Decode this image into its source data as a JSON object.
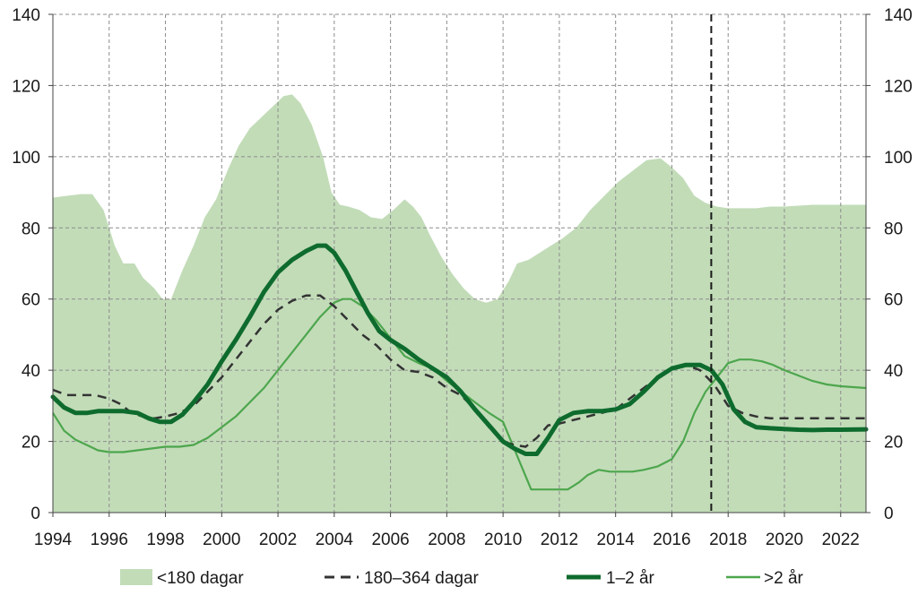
{
  "chart_data": {
    "type": "area+line",
    "title": "",
    "xlabel": "",
    "ylabel": "",
    "xlim": [
      1994,
      2022.9
    ],
    "ylim": [
      0,
      140
    ],
    "x_ticks": [
      "1994",
      "1996",
      "1998",
      "2000",
      "2002",
      "2004",
      "2006",
      "2008",
      "2010",
      "2012",
      "2014",
      "2016",
      "2018",
      "2020",
      "2022"
    ],
    "y_ticks": [
      "0",
      "20",
      "40",
      "60",
      "80",
      "100",
      "120",
      "140"
    ],
    "grid": true,
    "vertical_marker_x": 2017.4,
    "colors": {
      "area": "#c2dcb8",
      "dashed": "#333333",
      "thick": "#0e6b2e",
      "thin": "#4da64d",
      "grid": "#8c8c8c"
    },
    "series": [
      {
        "name": "<180 dagar",
        "style": "area",
        "x": [
          1994,
          1994.5,
          1995,
          1995.4,
          1995.8,
          1996.2,
          1996.5,
          1996.9,
          1997.2,
          1997.6,
          1997.9,
          1998.2,
          1998.6,
          1999,
          1999.4,
          1999.8,
          2000.2,
          2000.6,
          2001,
          2001.4,
          2001.8,
          2002.2,
          2002.5,
          2002.8,
          2003.2,
          2003.6,
          2003.9,
          2004.2,
          2004.5,
          2004.9,
          2005.3,
          2005.7,
          2006.1,
          2006.5,
          2006.8,
          2007.1,
          2007.4,
          2007.8,
          2008.2,
          2008.6,
          2009,
          2009.4,
          2009.8,
          2010.2,
          2010.5,
          2010.9,
          2011.3,
          2011.7,
          2012.1,
          2012.6,
          2013.1,
          2013.6,
          2014.1,
          2014.6,
          2015.1,
          2015.6,
          2016,
          2016.4,
          2016.8,
          2017.2,
          2017.6,
          2018,
          2018.5,
          2019,
          2019.5,
          2020,
          2021,
          2022,
          2022.9
        ],
        "values": [
          88.5,
          89,
          89.5,
          89.5,
          85,
          75,
          70,
          70,
          66,
          63,
          60,
          60,
          68,
          75,
          83,
          88,
          96,
          103,
          108,
          111,
          114,
          117,
          117.5,
          115,
          109,
          100,
          90,
          86.5,
          86,
          85,
          83,
          82.5,
          85,
          88,
          86,
          83,
          78,
          72,
          67,
          63,
          60,
          59,
          60,
          65,
          70,
          71,
          73,
          75,
          77,
          80,
          85,
          89,
          93,
          96,
          99,
          99.5,
          97,
          94,
          89,
          87,
          86,
          85.5,
          85.5,
          85.5,
          86,
          86,
          86.5,
          86.5,
          86.5
        ]
      },
      {
        "name": "180–364 dagar",
        "style": "dashed",
        "x": [
          1994,
          1994.5,
          1995,
          1995.5,
          1996,
          1996.4,
          1996.8,
          1997.2,
          1997.6,
          1998,
          1998.5,
          1999,
          1999.5,
          2000,
          2000.5,
          2001,
          2001.5,
          2002,
          2002.5,
          2003,
          2003.5,
          2004,
          2004.5,
          2005,
          2005.5,
          2006,
          2006.5,
          2007,
          2007.5,
          2008,
          2008.5,
          2009,
          2009.5,
          2010,
          2010.4,
          2010.8,
          2011.2,
          2011.6,
          2012,
          2012.5,
          2013,
          2013.5,
          2014,
          2014.5,
          2015,
          2015.5,
          2016,
          2016.5,
          2017,
          2017.5,
          2018,
          2018.5,
          2019,
          2019.5,
          2020,
          2021,
          2022,
          2022.9
        ],
        "values": [
          34.5,
          33,
          33,
          33,
          32,
          30.5,
          28,
          27,
          26.5,
          27,
          28,
          30,
          34,
          38,
          43,
          48,
          53,
          57,
          59.5,
          61,
          61,
          58,
          54,
          50,
          47,
          43,
          40,
          39.5,
          38,
          35,
          33,
          29,
          24,
          20,
          19,
          18.5,
          21,
          24.5,
          25,
          26,
          27,
          28,
          29,
          32,
          35,
          38,
          40.5,
          41.5,
          40,
          36,
          30,
          28,
          27,
          26.5,
          26.5,
          26.5,
          26.5,
          26.5
        ]
      },
      {
        "name": "1–2 år",
        "style": "thick",
        "x": [
          1994,
          1994.4,
          1994.8,
          1995.2,
          1995.6,
          1996,
          1996.5,
          1997,
          1997.4,
          1997.8,
          1998.2,
          1998.6,
          1999,
          1999.5,
          2000,
          2000.5,
          2001,
          2001.5,
          2002,
          2002.5,
          2003,
          2003.4,
          2003.7,
          2004,
          2004.4,
          2004.8,
          2005.2,
          2005.6,
          2006,
          2006.5,
          2007,
          2007.5,
          2008,
          2008.5,
          2009,
          2009.5,
          2010,
          2010.4,
          2010.8,
          2011.2,
          2011.6,
          2012,
          2012.5,
          2013,
          2013.5,
          2014,
          2014.5,
          2015,
          2015.5,
          2016,
          2016.5,
          2017,
          2017.4,
          2017.8,
          2018.2,
          2018.6,
          2019,
          2019.5,
          2020,
          2020.5,
          2021,
          2021.5,
          2022,
          2022.9
        ],
        "values": [
          32.5,
          29.5,
          28,
          28,
          28.5,
          28.5,
          28.5,
          28,
          26.5,
          25.5,
          25.5,
          27.5,
          31,
          36,
          42.5,
          48.5,
          55,
          62,
          67.5,
          71,
          73.5,
          75,
          75,
          73,
          68,
          62,
          56,
          51,
          48.5,
          46,
          43,
          40.5,
          38,
          34,
          29,
          24.5,
          20,
          18,
          16.5,
          16.5,
          21,
          26,
          28,
          28.5,
          28.5,
          29,
          30.5,
          34,
          38,
          40.5,
          41.5,
          41.5,
          40,
          36,
          29,
          25.5,
          24,
          23.7,
          23.5,
          23.3,
          23.2,
          23.3,
          23.3,
          23.4
        ]
      },
      {
        "name": ">2 år",
        "style": "thin",
        "x": [
          1994,
          1994.4,
          1994.8,
          1995.2,
          1995.6,
          1996,
          1996.5,
          1997,
          1997.5,
          1998,
          1998.5,
          1999,
          1999.5,
          2000,
          2000.5,
          2001,
          2001.5,
          2002,
          2002.5,
          2003,
          2003.5,
          2004,
          2004.3,
          2004.6,
          2005,
          2005.5,
          2006,
          2006.5,
          2007,
          2007.5,
          2008,
          2008.5,
          2009,
          2009.5,
          2010,
          2010.5,
          2011,
          2011.5,
          2012,
          2012.3,
          2012.7,
          2013,
          2013.4,
          2013.8,
          2014.2,
          2014.6,
          2015,
          2015.5,
          2016,
          2016.4,
          2016.8,
          2017.2,
          2017.6,
          2018,
          2018.4,
          2018.8,
          2019.2,
          2019.6,
          2020,
          2020.5,
          2021,
          2021.5,
          2022,
          2022.9
        ],
        "values": [
          28,
          23,
          20.5,
          19,
          17.5,
          17,
          17,
          17.5,
          18,
          18.5,
          18.5,
          19,
          21,
          24,
          27,
          31,
          35,
          40,
          45,
          50,
          55,
          59,
          60,
          60,
          58,
          54,
          49,
          44,
          42,
          40.5,
          37,
          34,
          31,
          28,
          25.5,
          16,
          6.5,
          6.5,
          6.5,
          6.5,
          8.5,
          10.5,
          12,
          11.5,
          11.5,
          11.5,
          12,
          13,
          15,
          20,
          28,
          34,
          38,
          42,
          43,
          43,
          42.5,
          41.5,
          40,
          38.5,
          37,
          36,
          35.5,
          35
        ]
      }
    ]
  },
  "legend": {
    "items": [
      {
        "label": "<180 dagar"
      },
      {
        "label": "180–364 dagar"
      },
      {
        "label": "1–2 år"
      },
      {
        "label": ">2 år"
      }
    ]
  }
}
